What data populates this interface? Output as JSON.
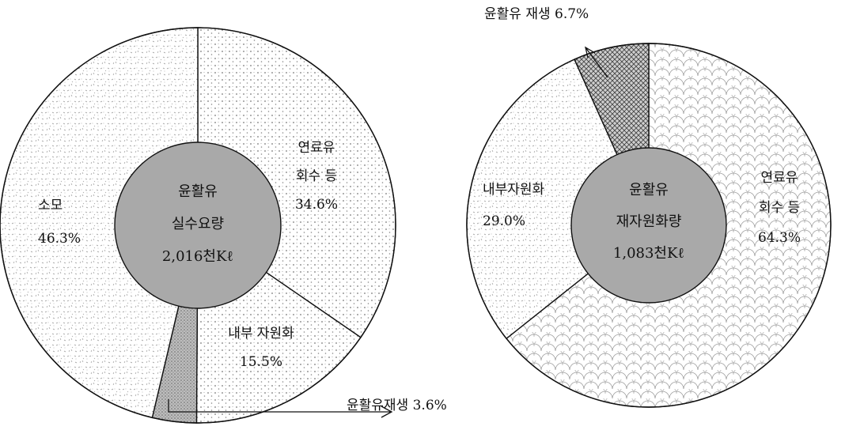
{
  "chart_data": [
    {
      "type": "pie",
      "center_label": [
        "윤활유",
        "실수요량",
        "2,016천Kℓ"
      ],
      "slices": [
        {
          "label": "연료유 회수 등",
          "label_lines": [
            "연료유",
            "회수 등",
            "34.6%"
          ],
          "value": 34.6,
          "pattern": "dots"
        },
        {
          "label": "내부 자원화",
          "label_lines": [
            "내부 자원화",
            "15.5%"
          ],
          "value": 15.5,
          "pattern": "dots"
        },
        {
          "label": "윤활유재생",
          "label_lines": [
            "윤활유재생 3.6%"
          ],
          "value": 3.6,
          "pattern": "dense"
        },
        {
          "label": "소모",
          "label_lines": [
            "소모",
            "46.3%"
          ],
          "value": 46.3,
          "pattern": "speckle"
        }
      ]
    },
    {
      "type": "pie",
      "center_label": [
        "윤활유",
        "재자원화량",
        "1,083천Kℓ"
      ],
      "slices": [
        {
          "label": "연료유 회수 등",
          "label_lines": [
            "연료유",
            "회수 등",
            "64.3%"
          ],
          "value": 64.3,
          "pattern": "scales"
        },
        {
          "label": "내부자원화",
          "label_lines": [
            "내부자원화",
            "29.0%"
          ],
          "value": 29.0,
          "pattern": "speckle"
        },
        {
          "label": "윤활유 재생",
          "label_lines": [
            "윤활유 재생 6.7%"
          ],
          "value": 6.7,
          "pattern": "crosshatch"
        }
      ]
    }
  ],
  "colors": {
    "center_fill": "#a9a9a9",
    "line": "#111111",
    "pattern_ink": "#7a7a7a"
  }
}
